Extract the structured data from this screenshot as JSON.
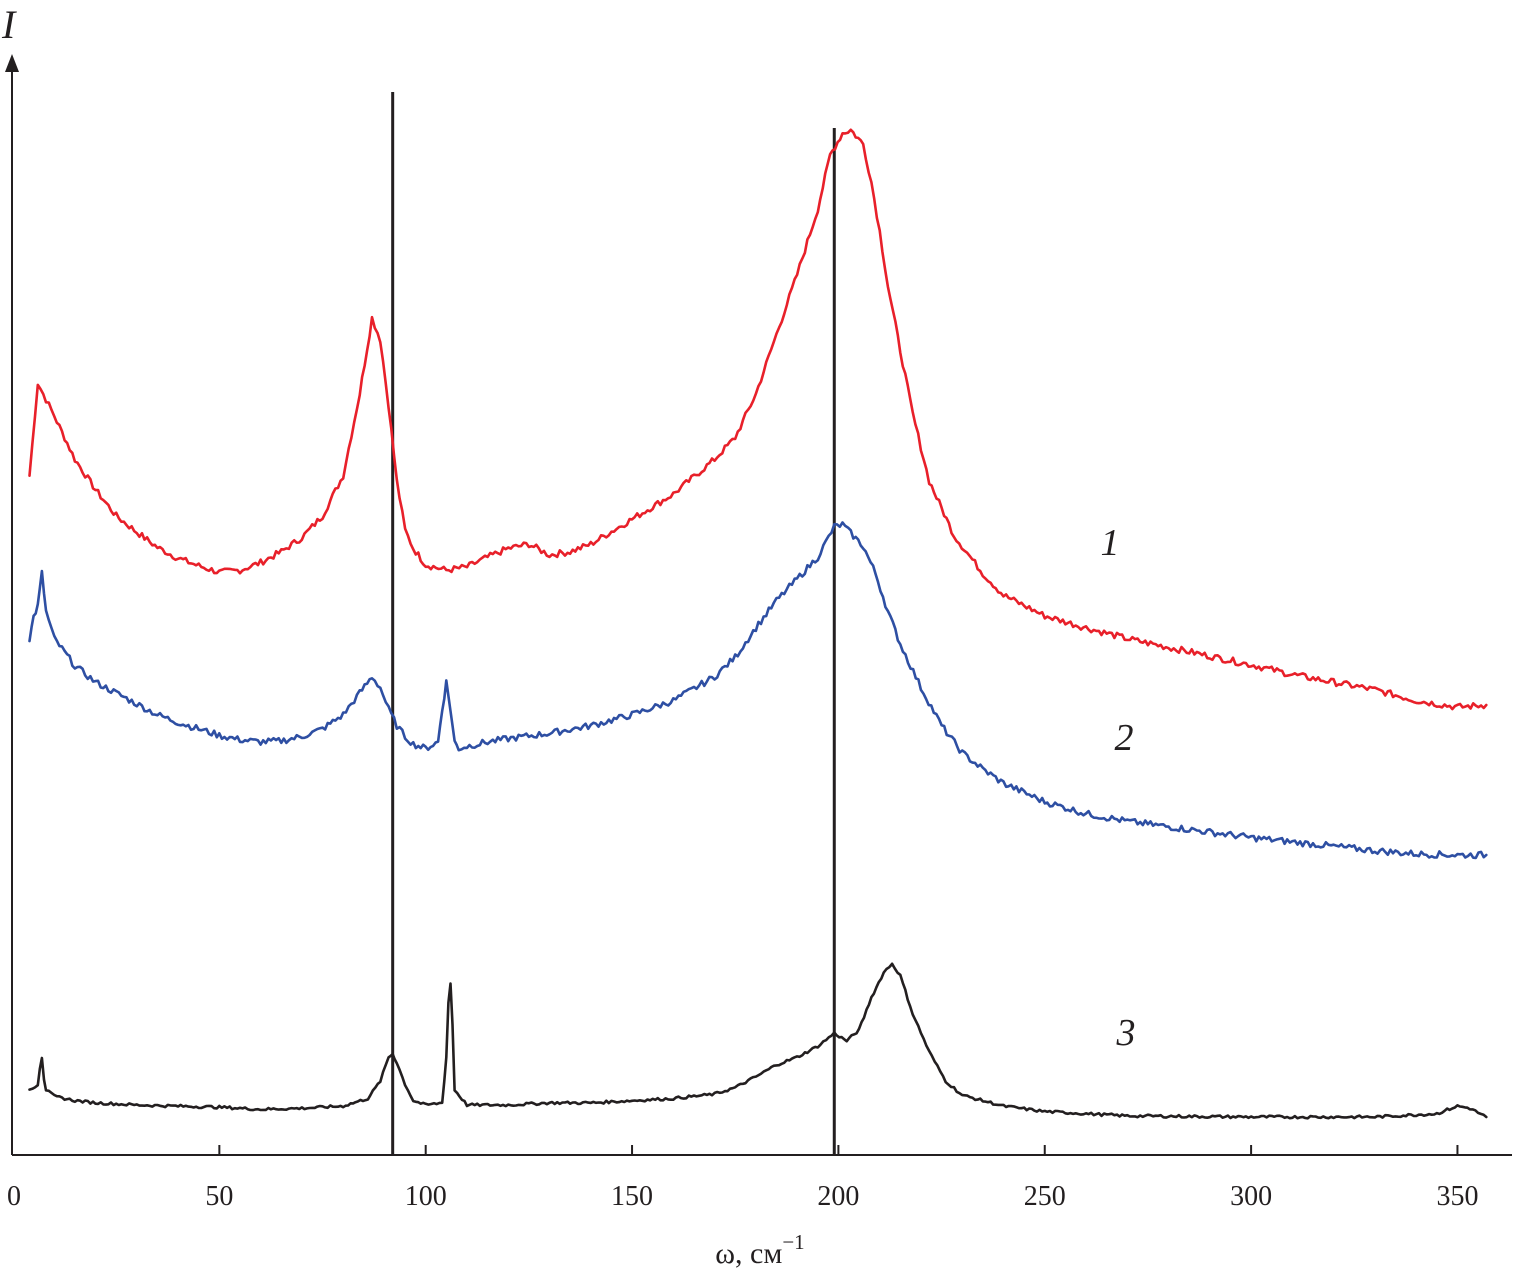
{
  "chart_data": {
    "type": "line",
    "title": "",
    "xlabel": "ω, см",
    "xlabel_superscript": "−1",
    "ylabel": "I",
    "xlim": [
      0,
      365
    ],
    "ylim": [
      0,
      1
    ],
    "x_ticks": [
      0,
      50,
      100,
      150,
      200,
      250,
      300,
      350
    ],
    "x_tick_labels": [
      "0",
      "50",
      "100",
      "150",
      "200",
      "250",
      "300",
      "350"
    ],
    "grid": false,
    "legend": "inline labels",
    "reference_lines_x": [
      92,
      199
    ],
    "colors": {
      "axis": "#231f20",
      "series_1": "#e8202a",
      "series_2": "#2e4fa3",
      "series_3": "#231f20"
    },
    "series": [
      {
        "name": "1",
        "color": "#e8202a",
        "x": [
          4,
          6,
          10,
          15,
          20,
          25,
          30,
          35,
          40,
          45,
          50,
          55,
          60,
          65,
          70,
          75,
          80,
          84,
          87,
          89,
          91,
          93,
          95,
          97,
          100,
          105,
          110,
          115,
          120,
          125,
          128,
          130,
          135,
          140,
          150,
          160,
          170,
          175,
          180,
          185,
          190,
          195,
          198,
          201,
          203,
          206,
          208,
          210,
          212,
          215,
          218,
          222,
          228,
          235,
          240,
          250,
          260,
          270,
          280,
          290,
          300,
          310,
          320,
          330,
          340,
          350,
          357
        ],
        "y": [
          0.625,
          0.71,
          0.68,
          0.64,
          0.612,
          0.588,
          0.573,
          0.559,
          0.549,
          0.542,
          0.536,
          0.538,
          0.545,
          0.555,
          0.568,
          0.588,
          0.625,
          0.7,
          0.77,
          0.75,
          0.69,
          0.62,
          0.575,
          0.558,
          0.543,
          0.538,
          0.541,
          0.55,
          0.558,
          0.562,
          0.556,
          0.552,
          0.555,
          0.562,
          0.585,
          0.608,
          0.64,
          0.66,
          0.7,
          0.755,
          0.81,
          0.87,
          0.92,
          0.94,
          0.943,
          0.93,
          0.895,
          0.85,
          0.8,
          0.74,
          0.682,
          0.62,
          0.57,
          0.535,
          0.515,
          0.496,
          0.485,
          0.475,
          0.467,
          0.459,
          0.451,
          0.442,
          0.435,
          0.428,
          0.418,
          0.412,
          0.414
        ]
      },
      {
        "name": "2",
        "color": "#2e4fa3",
        "x": [
          4,
          5,
          6,
          7,
          8,
          10,
          15,
          20,
          25,
          30,
          35,
          40,
          45,
          50,
          55,
          60,
          65,
          70,
          75,
          80,
          84,
          87,
          89,
          91,
          93,
          95,
          97,
          100,
          103,
          104,
          105,
          106,
          107,
          108,
          110,
          115,
          120,
          130,
          140,
          150,
          160,
          170,
          175,
          180,
          185,
          190,
          195,
          199,
          201,
          203,
          206,
          209,
          212,
          215,
          220,
          225,
          230,
          235,
          240,
          250,
          260,
          270,
          280,
          290,
          300,
          310,
          320,
          330,
          340,
          350,
          357
        ],
        "y": [
          0.475,
          0.495,
          0.505,
          0.535,
          0.5,
          0.475,
          0.45,
          0.435,
          0.425,
          0.415,
          0.405,
          0.398,
          0.392,
          0.386,
          0.382,
          0.38,
          0.381,
          0.385,
          0.392,
          0.405,
          0.425,
          0.44,
          0.43,
          0.41,
          0.395,
          0.385,
          0.378,
          0.374,
          0.38,
          0.41,
          0.435,
          0.41,
          0.38,
          0.374,
          0.376,
          0.38,
          0.383,
          0.388,
          0.395,
          0.405,
          0.418,
          0.44,
          0.458,
          0.485,
          0.51,
          0.53,
          0.55,
          0.578,
          0.58,
          0.572,
          0.56,
          0.535,
          0.5,
          0.47,
          0.43,
          0.395,
          0.37,
          0.355,
          0.342,
          0.325,
          0.314,
          0.307,
          0.302,
          0.297,
          0.292,
          0.288,
          0.284,
          0.28,
          0.277,
          0.276,
          0.276
        ]
      },
      {
        "name": "3",
        "color": "#231f20",
        "x": [
          4,
          6,
          6.5,
          7,
          7.5,
          8,
          10,
          15,
          20,
          30,
          40,
          50,
          60,
          70,
          80,
          86,
          89,
          91,
          92,
          93,
          95,
          97,
          100,
          104,
          105,
          105.5,
          106,
          106.5,
          107,
          110,
          120,
          130,
          140,
          150,
          160,
          170,
          175,
          180,
          185,
          190,
          195,
          199,
          202,
          205,
          208,
          211,
          213,
          215,
          218,
          222,
          226,
          230,
          240,
          250,
          270,
          300,
          330,
          345,
          350,
          353,
          357
        ],
        "y": [
          0.06,
          0.065,
          0.08,
          0.09,
          0.07,
          0.06,
          0.054,
          0.05,
          0.048,
          0.046,
          0.045,
          0.044,
          0.042,
          0.043,
          0.045,
          0.052,
          0.068,
          0.09,
          0.093,
          0.085,
          0.065,
          0.05,
          0.046,
          0.048,
          0.09,
          0.14,
          0.158,
          0.12,
          0.06,
          0.046,
          0.046,
          0.048,
          0.048,
          0.05,
          0.052,
          0.056,
          0.062,
          0.072,
          0.083,
          0.09,
          0.1,
          0.112,
          0.105,
          0.115,
          0.145,
          0.168,
          0.176,
          0.165,
          0.13,
          0.095,
          0.068,
          0.055,
          0.045,
          0.04,
          0.036,
          0.035,
          0.035,
          0.038,
          0.045,
          0.043,
          0.035
        ]
      }
    ]
  },
  "labels": {
    "zero": "0"
  }
}
